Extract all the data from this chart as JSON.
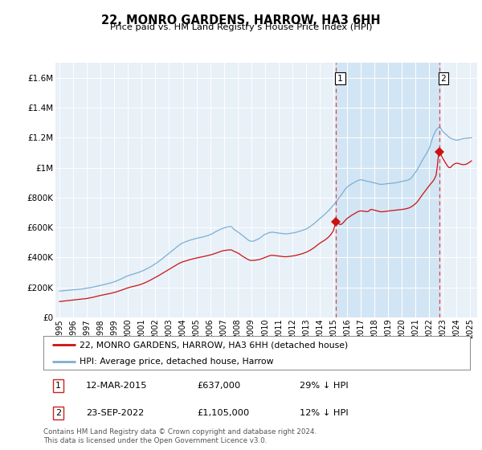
{
  "title": "22, MONRO GARDENS, HARROW, HA3 6HH",
  "subtitle": "Price paid vs. HM Land Registry’s House Price Index (HPI)",
  "ylim": [
    0,
    1700000
  ],
  "yticks": [
    0,
    200000,
    400000,
    600000,
    800000,
    1000000,
    1200000,
    1400000,
    1600000
  ],
  "ytick_labels": [
    "£0",
    "£200K",
    "£400K",
    "£600K",
    "£800K",
    "£1M",
    "£1.2M",
    "£1.4M",
    "£1.6M"
  ],
  "xlabel_years": [
    1995,
    1996,
    1997,
    1998,
    1999,
    2000,
    2001,
    2002,
    2003,
    2004,
    2005,
    2006,
    2007,
    2008,
    2009,
    2010,
    2011,
    2012,
    2013,
    2014,
    2015,
    2016,
    2017,
    2018,
    2019,
    2020,
    2021,
    2022,
    2023,
    2024,
    2025
  ],
  "xlim": [
    1994.7,
    2025.5
  ],
  "hpi_color": "#7bafd4",
  "price_color": "#cc1111",
  "vline_color": "#dd4444",
  "bg_color": "#e8f0f8",
  "shade_color": "#d0e4f4",
  "plot_bg": "#ffffff",
  "vline1_x": 2015.2,
  "vline2_x": 2022.73,
  "sale1_x": 2015.2,
  "sale1_y": 637000,
  "sale2_x": 2022.73,
  "sale2_y": 1105000,
  "legend_label_red": "22, MONRO GARDENS, HARROW, HA3 6HH (detached house)",
  "legend_label_blue": "HPI: Average price, detached house, Harrow",
  "annotation1_num": "1",
  "annotation1_date": "12-MAR-2015",
  "annotation1_price": "£637,000",
  "annotation1_hpi": "29% ↓ HPI",
  "annotation2_num": "2",
  "annotation2_date": "23-SEP-2022",
  "annotation2_price": "£1,105,000",
  "annotation2_hpi": "12% ↓ HPI",
  "footer": "Contains HM Land Registry data © Crown copyright and database right 2024.\nThis data is licensed under the Open Government Licence v3.0."
}
